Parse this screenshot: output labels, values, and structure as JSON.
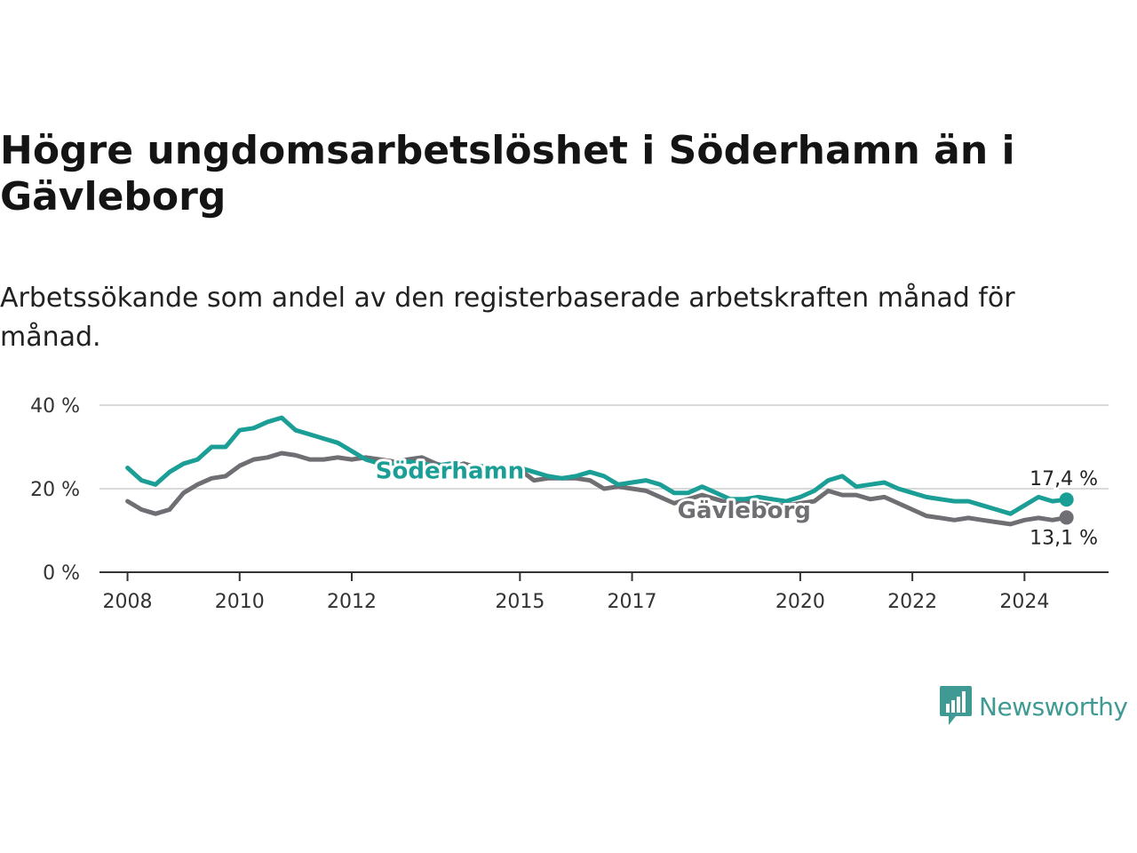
{
  "title": "Högre ungdomsarbetslöshet i Söderhamn än i Gävleborg",
  "subtitle": "Arbetssökande som andel av den registerbaserade arbetskraften månad för månad.",
  "brand": {
    "name": "Newsworthy",
    "icon": "newsworthy-logo-icon",
    "color": "#3f9a93"
  },
  "chart_data": {
    "type": "line",
    "title": "Högre ungdomsarbetslöshet i Söderhamn än i Gävleborg",
    "subtitle": "Arbetssökande som andel av den registerbaserade arbetskraften månad för månad.",
    "ylim": [
      0,
      40
    ],
    "xlim": [
      2007.5,
      2025.5
    ],
    "y_ticks": [
      0,
      20,
      40
    ],
    "y_tick_labels": [
      "0 %",
      "20 %",
      "40 %"
    ],
    "x_ticks": [
      2008,
      2010,
      2012,
      2015,
      2017,
      2020,
      2022,
      2024
    ],
    "x_tick_labels": [
      "2008",
      "2010",
      "2012",
      "2015",
      "2017",
      "2020",
      "2022",
      "2024"
    ],
    "grid": "horizontal",
    "series": [
      {
        "name": "Söderhamn",
        "color": "#1a9e95",
        "last_label": "17,4 %",
        "points": [
          [
            2008.0,
            25.0
          ],
          [
            2008.25,
            22.0
          ],
          [
            2008.5,
            21.0
          ],
          [
            2008.75,
            24.0
          ],
          [
            2009.0,
            26.0
          ],
          [
            2009.25,
            27.0
          ],
          [
            2009.5,
            30.0
          ],
          [
            2009.75,
            30.0
          ],
          [
            2010.0,
            34.0
          ],
          [
            2010.25,
            34.5
          ],
          [
            2010.5,
            36.0
          ],
          [
            2010.75,
            37.0
          ],
          [
            2011.0,
            34.0
          ],
          [
            2011.25,
            33.0
          ],
          [
            2011.5,
            32.0
          ],
          [
            2011.75,
            31.0
          ],
          [
            2012.0,
            29.0
          ],
          [
            2012.25,
            27.0
          ],
          [
            2012.5,
            26.0
          ],
          [
            2012.75,
            26.0
          ],
          [
            2013.0,
            26.5
          ],
          [
            2013.25,
            26.0
          ],
          [
            2013.5,
            25.5
          ],
          [
            2013.75,
            26.0
          ],
          [
            2014.0,
            25.0
          ],
          [
            2014.25,
            25.5
          ],
          [
            2014.5,
            25.0
          ],
          [
            2014.75,
            25.0
          ],
          [
            2015.0,
            25.0
          ],
          [
            2015.25,
            24.0
          ],
          [
            2015.5,
            23.0
          ],
          [
            2015.75,
            22.5
          ],
          [
            2016.0,
            23.0
          ],
          [
            2016.25,
            24.0
          ],
          [
            2016.5,
            23.0
          ],
          [
            2016.75,
            21.0
          ],
          [
            2017.0,
            21.5
          ],
          [
            2017.25,
            22.0
          ],
          [
            2017.5,
            21.0
          ],
          [
            2017.75,
            19.0
          ],
          [
            2018.0,
            19.0
          ],
          [
            2018.25,
            20.5
          ],
          [
            2018.5,
            19.0
          ],
          [
            2018.75,
            17.5
          ],
          [
            2019.0,
            17.5
          ],
          [
            2019.25,
            18.0
          ],
          [
            2019.5,
            17.5
          ],
          [
            2019.75,
            17.0
          ],
          [
            2020.0,
            18.0
          ],
          [
            2020.25,
            19.5
          ],
          [
            2020.5,
            22.0
          ],
          [
            2020.75,
            23.0
          ],
          [
            2021.0,
            20.5
          ],
          [
            2021.25,
            21.0
          ],
          [
            2021.5,
            21.5
          ],
          [
            2021.75,
            20.0
          ],
          [
            2022.0,
            19.0
          ],
          [
            2022.25,
            18.0
          ],
          [
            2022.5,
            17.5
          ],
          [
            2022.75,
            17.0
          ],
          [
            2023.0,
            17.0
          ],
          [
            2023.25,
            16.0
          ],
          [
            2023.5,
            15.0
          ],
          [
            2023.75,
            14.0
          ],
          [
            2024.0,
            16.0
          ],
          [
            2024.25,
            18.0
          ],
          [
            2024.5,
            17.0
          ],
          [
            2024.75,
            17.4
          ]
        ]
      },
      {
        "name": "Gävleborg",
        "color": "#6e6e73",
        "last_label": "13,1 %",
        "points": [
          [
            2008.0,
            17.0
          ],
          [
            2008.25,
            15.0
          ],
          [
            2008.5,
            14.0
          ],
          [
            2008.75,
            15.0
          ],
          [
            2009.0,
            19.0
          ],
          [
            2009.25,
            21.0
          ],
          [
            2009.5,
            22.5
          ],
          [
            2009.75,
            23.0
          ],
          [
            2010.0,
            25.5
          ],
          [
            2010.25,
            27.0
          ],
          [
            2010.5,
            27.5
          ],
          [
            2010.75,
            28.5
          ],
          [
            2011.0,
            28.0
          ],
          [
            2011.25,
            27.0
          ],
          [
            2011.5,
            27.0
          ],
          [
            2011.75,
            27.5
          ],
          [
            2012.0,
            27.0
          ],
          [
            2012.25,
            27.5
          ],
          [
            2012.5,
            27.0
          ],
          [
            2012.75,
            26.5
          ],
          [
            2013.0,
            27.0
          ],
          [
            2013.25,
            27.5
          ],
          [
            2013.5,
            26.0
          ],
          [
            2013.75,
            25.0
          ],
          [
            2014.0,
            26.0
          ],
          [
            2014.25,
            25.0
          ],
          [
            2014.5,
            24.0
          ],
          [
            2014.75,
            24.5
          ],
          [
            2015.0,
            24.5
          ],
          [
            2015.25,
            22.0
          ],
          [
            2015.5,
            22.5
          ],
          [
            2015.75,
            22.5
          ],
          [
            2016.0,
            22.5
          ],
          [
            2016.25,
            22.0
          ],
          [
            2016.5,
            20.0
          ],
          [
            2016.75,
            20.5
          ],
          [
            2017.0,
            20.0
          ],
          [
            2017.25,
            19.5
          ],
          [
            2017.5,
            18.0
          ],
          [
            2017.75,
            16.5
          ],
          [
            2018.0,
            17.5
          ],
          [
            2018.25,
            18.5
          ],
          [
            2018.5,
            17.5
          ],
          [
            2018.75,
            16.5
          ],
          [
            2019.0,
            17.0
          ],
          [
            2019.25,
            16.5
          ],
          [
            2019.5,
            16.0
          ],
          [
            2019.75,
            16.0
          ],
          [
            2020.0,
            16.5
          ],
          [
            2020.25,
            17.0
          ],
          [
            2020.5,
            19.5
          ],
          [
            2020.75,
            18.5
          ],
          [
            2021.0,
            18.5
          ],
          [
            2021.25,
            17.5
          ],
          [
            2021.5,
            18.0
          ],
          [
            2021.75,
            16.5
          ],
          [
            2022.0,
            15.0
          ],
          [
            2022.25,
            13.5
          ],
          [
            2022.5,
            13.0
          ],
          [
            2022.75,
            12.5
          ],
          [
            2023.0,
            13.0
          ],
          [
            2023.25,
            12.5
          ],
          [
            2023.5,
            12.0
          ],
          [
            2023.75,
            11.5
          ],
          [
            2024.0,
            12.5
          ],
          [
            2024.25,
            13.0
          ],
          [
            2024.5,
            12.5
          ],
          [
            2024.75,
            13.1
          ]
        ]
      }
    ]
  }
}
